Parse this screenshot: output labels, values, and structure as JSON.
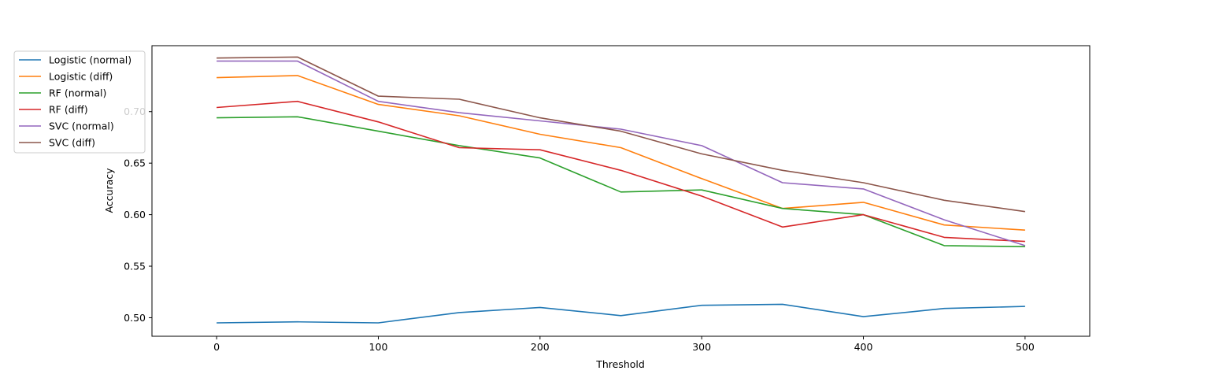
{
  "chart_data": {
    "type": "line",
    "title": "",
    "xlabel": "Threshold",
    "ylabel": "Accuracy",
    "xlim": [
      -40,
      540
    ],
    "ylim": [
      0.482,
      0.764
    ],
    "xticks": [
      0,
      100,
      200,
      300,
      400,
      500
    ],
    "yticks": [
      0.5,
      0.55,
      0.6,
      0.65,
      0.7
    ],
    "xtick_labels": [
      "0",
      "100",
      "200",
      "300",
      "400",
      "500"
    ],
    "ytick_labels": [
      "0.50",
      "0.55",
      "0.60",
      "0.65",
      "0.70"
    ],
    "grid": false,
    "legend_position": "upper-left",
    "x": [
      0,
      50,
      100,
      150,
      200,
      250,
      300,
      350,
      400,
      450,
      500
    ],
    "series": [
      {
        "name": "Logistic (normal)",
        "color": "#1f77b4",
        "values": [
          0.495,
          0.496,
          0.495,
          0.505,
          0.51,
          0.502,
          0.512,
          0.513,
          0.501,
          0.509,
          0.511
        ]
      },
      {
        "name": "Logistic (diff)",
        "color": "#ff7f0e",
        "values": [
          0.733,
          0.735,
          0.707,
          0.696,
          0.678,
          0.665,
          0.635,
          0.606,
          0.612,
          0.59,
          0.585
        ]
      },
      {
        "name": "RF (normal)",
        "color": "#2ca02c",
        "values": [
          0.694,
          0.695,
          0.681,
          0.667,
          0.655,
          0.622,
          0.624,
          0.606,
          0.6,
          0.57,
          0.569
        ]
      },
      {
        "name": "RF (diff)",
        "color": "#d62728",
        "values": [
          0.704,
          0.71,
          0.69,
          0.665,
          0.663,
          0.643,
          0.618,
          0.588,
          0.6,
          0.578,
          0.574
        ]
      },
      {
        "name": "SVC (normal)",
        "color": "#9467bd",
        "values": [
          0.749,
          0.749,
          0.71,
          0.699,
          0.691,
          0.683,
          0.667,
          0.631,
          0.625,
          0.595,
          0.57
        ]
      },
      {
        "name": "SVC (diff)",
        "color": "#8c564b",
        "values": [
          0.752,
          0.753,
          0.715,
          0.712,
          0.694,
          0.681,
          0.659,
          0.643,
          0.631,
          0.614,
          0.603
        ]
      }
    ]
  }
}
